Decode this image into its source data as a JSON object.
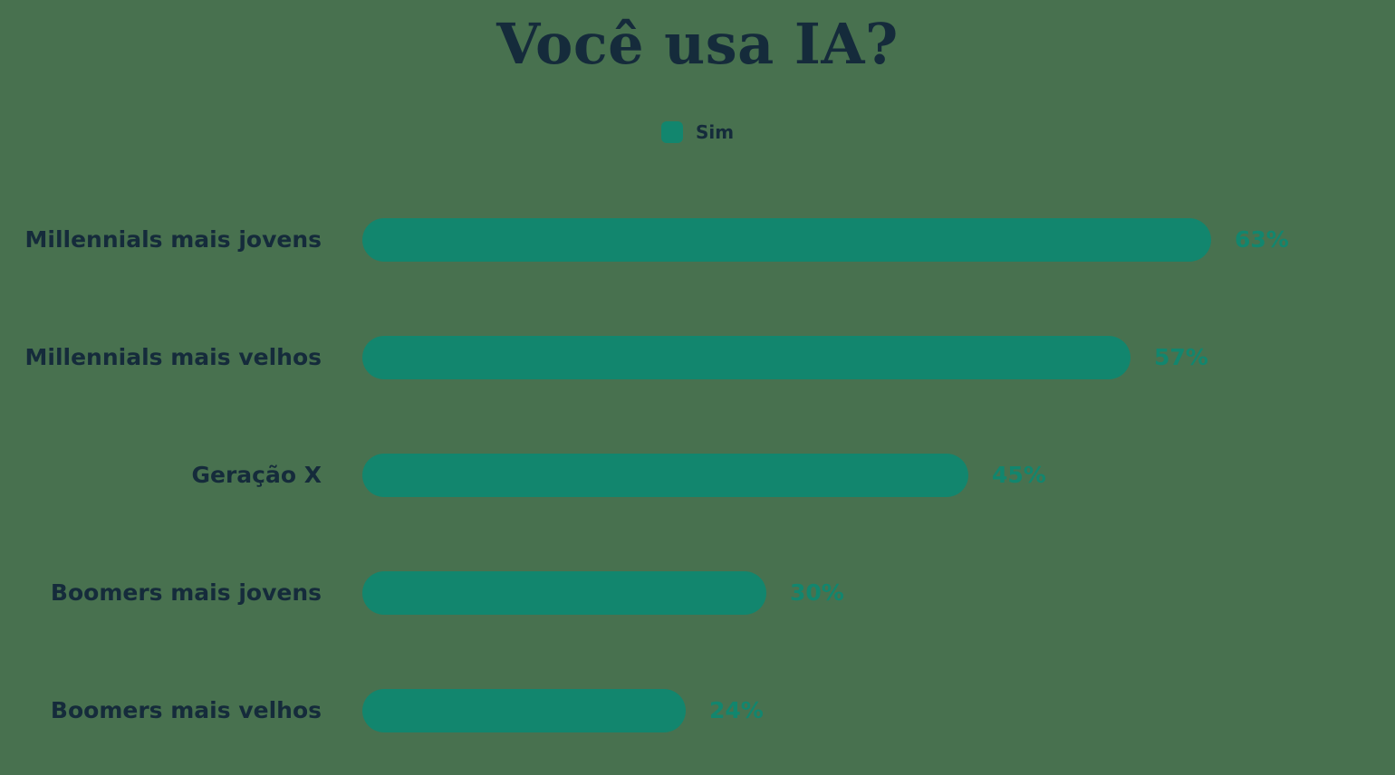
{
  "header": {
    "title": "Você usa IA?"
  },
  "legend": {
    "items": [
      {
        "label": "Sim",
        "swatch_color": "#12866E"
      }
    ]
  },
  "colors": {
    "background": "#48714F",
    "bar": "#12866E",
    "title_text": "#152B3B",
    "category_text": "#152B3B",
    "value_text": "#12866E"
  },
  "chart_data": {
    "type": "bar",
    "orientation": "horizontal",
    "title": "Você usa IA?",
    "legend": [
      "Sim"
    ],
    "legend_position": "top-center",
    "grid": false,
    "xlim": [
      0,
      100
    ],
    "categories": [
      "Millennials mais jovens",
      "Millennials mais velhos",
      "Geração X",
      "Boomers mais jovens",
      "Boomers mais velhos"
    ],
    "series": [
      {
        "name": "Sim",
        "values": [
          63,
          57,
          45,
          30,
          24
        ]
      }
    ],
    "value_labels": [
      "63%",
      "57%",
      "45%",
      "30%",
      "24%"
    ]
  }
}
